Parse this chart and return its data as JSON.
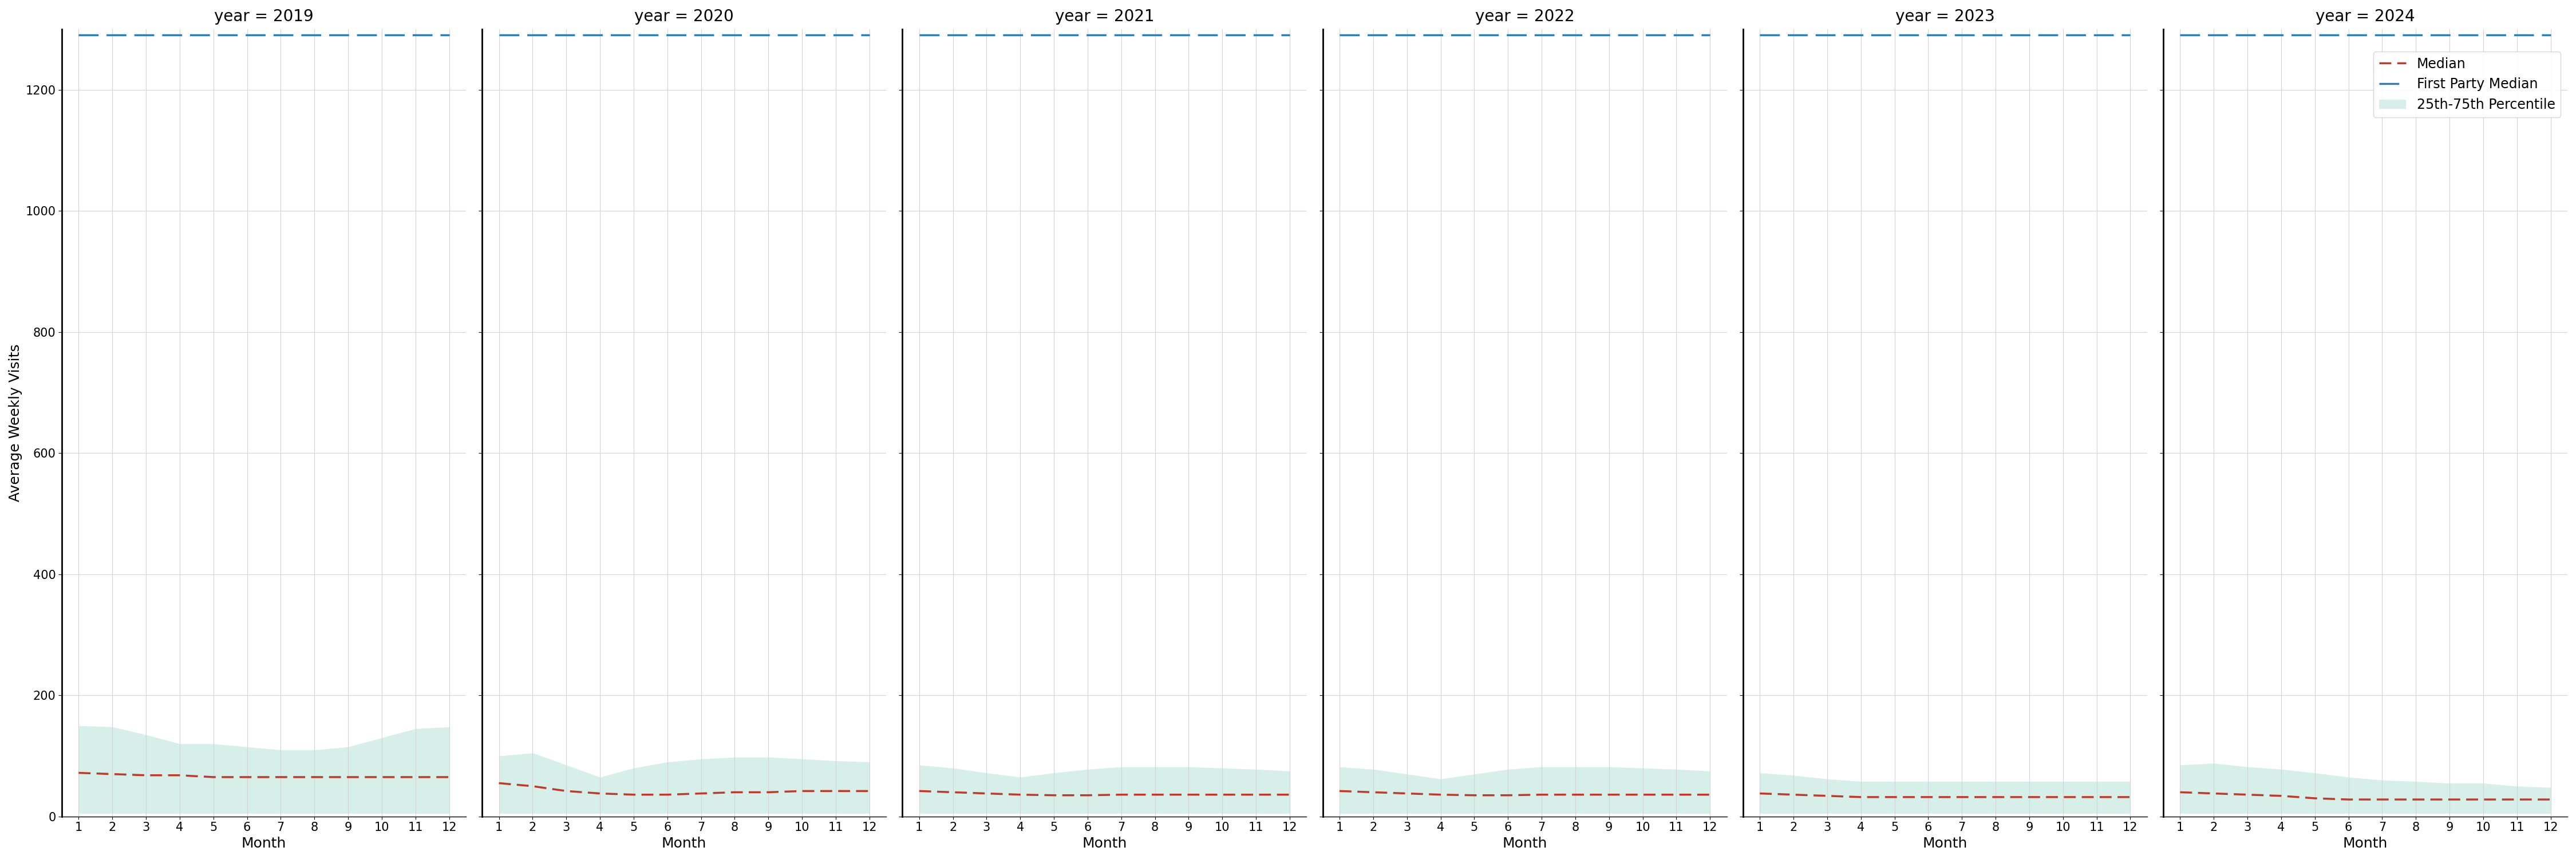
{
  "years": [
    2019,
    2020,
    2021,
    2022,
    2023,
    2024
  ],
  "months": [
    1,
    2,
    3,
    4,
    5,
    6,
    7,
    8,
    9,
    10,
    11,
    12
  ],
  "ylim": [
    0,
    1300
  ],
  "yticks": [
    0,
    200,
    400,
    600,
    800,
    1000,
    1200
  ],
  "ylabel": "Average Weekly Visits",
  "xlabel": "Month",
  "first_party_median": 1290,
  "median": {
    "2019": [
      72,
      70,
      68,
      68,
      65,
      65,
      65,
      65,
      65,
      65,
      65,
      65
    ],
    "2020": [
      55,
      50,
      42,
      38,
      36,
      36,
      38,
      40,
      40,
      42,
      42,
      42
    ],
    "2021": [
      42,
      40,
      38,
      36,
      35,
      35,
      36,
      36,
      36,
      36,
      36,
      36
    ],
    "2022": [
      42,
      40,
      38,
      36,
      35,
      35,
      36,
      36,
      36,
      36,
      36,
      36
    ],
    "2023": [
      38,
      36,
      34,
      32,
      32,
      32,
      32,
      32,
      32,
      32,
      32,
      32
    ],
    "2024": [
      40,
      38,
      36,
      34,
      30,
      28,
      28,
      28,
      28,
      28,
      28,
      28
    ]
  },
  "p25": {
    "2019": [
      5,
      5,
      5,
      5,
      5,
      5,
      5,
      5,
      5,
      5,
      5,
      5
    ],
    "2020": [
      5,
      5,
      5,
      5,
      5,
      5,
      5,
      5,
      5,
      5,
      5,
      5
    ],
    "2021": [
      5,
      5,
      5,
      5,
      5,
      5,
      5,
      5,
      5,
      5,
      5,
      5
    ],
    "2022": [
      5,
      5,
      5,
      5,
      5,
      5,
      5,
      5,
      5,
      5,
      5,
      5
    ],
    "2023": [
      5,
      5,
      5,
      5,
      5,
      5,
      5,
      5,
      5,
      5,
      5,
      5
    ],
    "2024": [
      5,
      5,
      5,
      5,
      5,
      5,
      5,
      5,
      5,
      5,
      5,
      5
    ]
  },
  "p75": {
    "2019": [
      150,
      148,
      135,
      120,
      120,
      115,
      110,
      110,
      115,
      130,
      145,
      148
    ],
    "2020": [
      100,
      105,
      85,
      65,
      80,
      90,
      95,
      98,
      98,
      95,
      92,
      90
    ],
    "2021": [
      85,
      80,
      72,
      65,
      72,
      78,
      82,
      82,
      82,
      80,
      78,
      75
    ],
    "2022": [
      82,
      78,
      70,
      62,
      70,
      78,
      82,
      82,
      82,
      80,
      78,
      75
    ],
    "2023": [
      72,
      68,
      62,
      58,
      58,
      58,
      58,
      58,
      58,
      58,
      58,
      58
    ],
    "2024": [
      85,
      88,
      82,
      78,
      72,
      65,
      60,
      58,
      55,
      55,
      50,
      48
    ]
  },
  "colors": {
    "median": "#c0392b",
    "first_party_median": "#2980b9",
    "fill": "#a8ddd0",
    "fill_alpha": 0.45
  },
  "legend_labels": [
    "Median",
    "First Party Median",
    "25th-75th Percentile"
  ],
  "title_prefix": "year = ",
  "title_fontsize": 20,
  "label_fontsize": 18,
  "tick_fontsize": 15,
  "legend_fontsize": 17
}
